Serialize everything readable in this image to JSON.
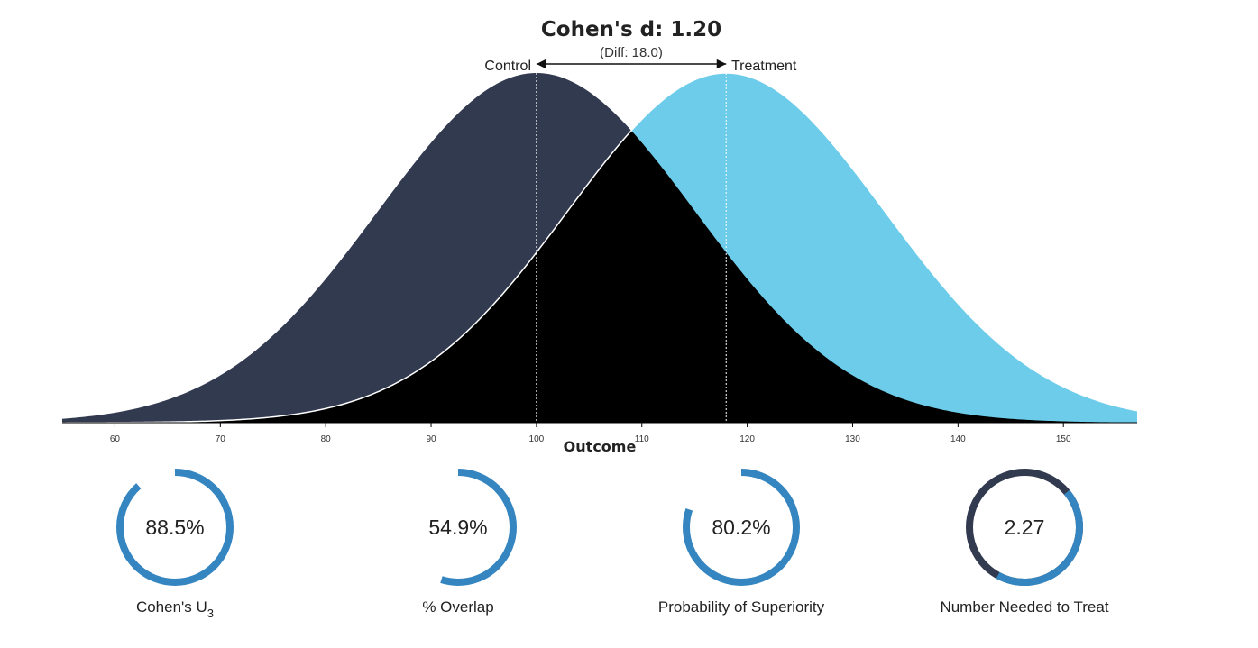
{
  "chart_data": {
    "type": "area",
    "title": "Cohen's d: 1.20",
    "subtitle": "(Diff: 18.0)",
    "xlabel": "Outcome",
    "xlim": [
      55,
      157
    ],
    "ticks": [
      60,
      70,
      80,
      90,
      100,
      110,
      120,
      130,
      140,
      150
    ],
    "series": [
      {
        "name": "Control",
        "mean": 100,
        "sd": 15,
        "color": "#323a50"
      },
      {
        "name": "Treatment",
        "mean": 118,
        "sd": 15,
        "color": "#6ccce9"
      }
    ],
    "overlap_color": "#000000"
  },
  "metrics": [
    {
      "value_text": "88.5%",
      "label": "Cohen's U",
      "sub": "3",
      "fraction": 0.885
    },
    {
      "value_text": "54.9%",
      "label": "% Overlap",
      "sub": "",
      "fraction": 0.549
    },
    {
      "value_text": "80.2%",
      "label": "Probability of Superiority",
      "sub": "",
      "fraction": 0.802
    },
    {
      "value_text": "2.27",
      "label": "Number Needed to Treat",
      "sub": "",
      "fraction": 0.44
    }
  ],
  "colors": {
    "ring": "#3485c0",
    "ring_rest": "#323a50"
  }
}
